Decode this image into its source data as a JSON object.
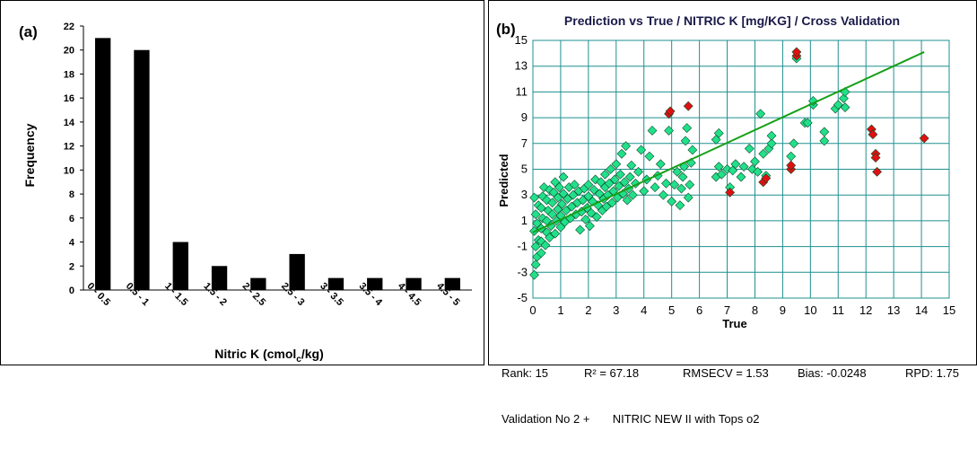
{
  "chart_data": [
    {
      "type": "bar",
      "panel_label": "(a)",
      "categories": [
        "0 - 0.5",
        "0.5 - 1",
        "1 - 1.5",
        "1.5 - 2",
        "2 - 2.5",
        "2.5 - 3",
        "3 - 3.5",
        "3.5 - 4",
        "4 - 4.5",
        "4.5 - 5"
      ],
      "values": [
        21,
        20,
        4,
        2,
        1,
        3,
        1,
        1,
        1,
        1
      ],
      "xlabel": "Nitric K (cmolc/kg)",
      "xlabel_main": "Nitric K (cmol",
      "xlabel_sub": "c",
      "xlabel_tail": "/kg)",
      "ylabel": "Frequency",
      "ylim": [
        0,
        22
      ],
      "yticks": [
        0,
        2,
        4,
        6,
        8,
        10,
        12,
        14,
        16,
        18,
        20,
        22
      ],
      "grid": false,
      "bar_color": "#000000"
    },
    {
      "type": "scatter",
      "panel_label": "(b)",
      "title": "Prediction vs True  /  NITRIC K [mg/KG]  /  Cross Validation",
      "xlabel": "True",
      "ylabel": "Predicted",
      "xlim": [
        0,
        15
      ],
      "ylim": [
        -5,
        15
      ],
      "xticks": [
        0,
        1,
        2,
        3,
        4,
        5,
        6,
        7,
        8,
        9,
        10,
        11,
        12,
        13,
        14,
        15
      ],
      "yticks": [
        -5,
        -3,
        -1,
        1,
        3,
        5,
        7,
        9,
        11,
        13,
        15
      ],
      "grid": true,
      "colors": {
        "normal": "#22e08a",
        "outlier": "#e01010",
        "grid": "#1f8f8f",
        "regression": "#16a016"
      },
      "regression_line": {
        "x": [
          0,
          14.1
        ],
        "y": [
          0.1,
          14.1
        ]
      },
      "series": [
        {
          "role": "normal",
          "points": [
            [
              0.05,
              -3.2
            ],
            [
              0.1,
              -2.4
            ],
            [
              0.15,
              -1.8
            ],
            [
              0.1,
              -1.0
            ],
            [
              0.2,
              -0.5
            ],
            [
              0.05,
              0.2
            ],
            [
              0.15,
              0.8
            ],
            [
              0.1,
              1.5
            ],
            [
              0.2,
              2.2
            ],
            [
              0.05,
              2.8
            ],
            [
              0.3,
              -1.5
            ],
            [
              0.3,
              -0.6
            ],
            [
              0.3,
              0.4
            ],
            [
              0.35,
              1.2
            ],
            [
              0.3,
              2.0
            ],
            [
              0.35,
              2.9
            ],
            [
              0.4,
              3.6
            ],
            [
              0.45,
              -0.9
            ],
            [
              0.5,
              0.1
            ],
            [
              0.5,
              1.0
            ],
            [
              0.55,
              1.8
            ],
            [
              0.5,
              2.6
            ],
            [
              0.6,
              3.4
            ],
            [
              0.6,
              -0.3
            ],
            [
              0.65,
              0.6
            ],
            [
              0.7,
              1.5
            ],
            [
              0.7,
              2.4
            ],
            [
              0.75,
              3.2
            ],
            [
              0.8,
              4.0
            ],
            [
              0.8,
              0.0
            ],
            [
              0.85,
              1.0
            ],
            [
              0.9,
              1.9
            ],
            [
              0.9,
              2.8
            ],
            [
              0.95,
              3.6
            ],
            [
              1.0,
              0.5
            ],
            [
              1.0,
              1.4
            ],
            [
              1.05,
              2.3
            ],
            [
              1.1,
              3.1
            ],
            [
              1.1,
              4.4
            ],
            [
              1.15,
              0.9
            ],
            [
              1.2,
              1.8
            ],
            [
              1.25,
              2.7
            ],
            [
              1.3,
              3.6
            ],
            [
              1.35,
              1.2
            ],
            [
              1.4,
              2.1
            ],
            [
              1.45,
              3.0
            ],
            [
              1.5,
              3.8
            ],
            [
              1.55,
              1.5
            ],
            [
              1.6,
              2.4
            ],
            [
              1.65,
              3.3
            ],
            [
              1.7,
              0.3
            ],
            [
              1.75,
              1.7
            ],
            [
              1.8,
              2.6
            ],
            [
              1.85,
              3.5
            ],
            [
              1.9,
              1.1
            ],
            [
              1.95,
              2.0
            ],
            [
              2.0,
              2.9
            ],
            [
              2.0,
              3.8
            ],
            [
              2.05,
              0.6
            ],
            [
              2.1,
              1.6
            ],
            [
              2.15,
              2.5
            ],
            [
              2.2,
              3.4
            ],
            [
              2.25,
              4.2
            ],
            [
              2.3,
              1.3
            ],
            [
              2.35,
              2.2
            ],
            [
              2.4,
              3.1
            ],
            [
              2.45,
              4.0
            ],
            [
              2.5,
              1.8
            ],
            [
              2.55,
              2.7
            ],
            [
              2.6,
              3.6
            ],
            [
              2.6,
              4.6
            ],
            [
              2.65,
              2.1
            ],
            [
              2.7,
              3.0
            ],
            [
              2.75,
              3.9
            ],
            [
              2.8,
              5.0
            ],
            [
              2.85,
              2.4
            ],
            [
              2.9,
              3.3
            ],
            [
              2.95,
              4.2
            ],
            [
              3.0,
              5.4
            ],
            [
              3.05,
              2.8
            ],
            [
              3.1,
              3.7
            ],
            [
              3.15,
              4.6
            ],
            [
              3.2,
              6.2
            ],
            [
              3.25,
              3.1
            ],
            [
              3.3,
              4.0
            ],
            [
              3.35,
              6.8
            ],
            [
              3.4,
              2.6
            ],
            [
              3.45,
              3.5
            ],
            [
              3.5,
              4.4
            ],
            [
              3.55,
              5.3
            ],
            [
              3.6,
              3.0
            ],
            [
              3.7,
              3.9
            ],
            [
              3.8,
              4.8
            ],
            [
              3.9,
              6.5
            ],
            [
              4.0,
              3.3
            ],
            [
              4.1,
              4.2
            ],
            [
              4.2,
              6.0
            ],
            [
              4.3,
              8.0
            ],
            [
              4.4,
              3.6
            ],
            [
              4.5,
              4.5
            ],
            [
              4.6,
              5.4
            ],
            [
              4.7,
              3.0
            ],
            [
              4.8,
              3.9
            ],
            [
              4.9,
              8.0
            ],
            [
              5.0,
              2.5
            ],
            [
              5.1,
              3.8
            ],
            [
              5.2,
              4.8
            ],
            [
              5.3,
              2.2
            ],
            [
              5.35,
              3.5
            ],
            [
              5.4,
              4.4
            ],
            [
              5.45,
              5.2
            ],
            [
              5.5,
              7.2
            ],
            [
              5.55,
              8.2
            ],
            [
              5.6,
              2.8
            ],
            [
              5.65,
              3.8
            ],
            [
              5.7,
              5.5
            ],
            [
              5.75,
              6.5
            ],
            [
              6.6,
              4.4
            ],
            [
              6.7,
              5.2
            ],
            [
              6.6,
              7.3
            ],
            [
              6.7,
              7.8
            ],
            [
              6.8,
              4.6
            ],
            [
              7.0,
              5.0
            ],
            [
              7.1,
              3.6
            ],
            [
              7.2,
              4.9
            ],
            [
              7.3,
              5.4
            ],
            [
              7.5,
              4.4
            ],
            [
              7.6,
              5.2
            ],
            [
              7.8,
              6.6
            ],
            [
              7.9,
              5.0
            ],
            [
              8.0,
              5.6
            ],
            [
              8.1,
              4.8
            ],
            [
              8.2,
              9.3
            ],
            [
              8.3,
              6.2
            ],
            [
              8.4,
              4.5
            ],
            [
              8.5,
              6.6
            ],
            [
              8.6,
              7.0
            ],
            [
              8.6,
              7.6
            ],
            [
              9.3,
              6.0
            ],
            [
              9.4,
              7.0
            ],
            [
              9.5,
              13.6
            ],
            [
              9.8,
              8.6
            ],
            [
              9.9,
              8.6
            ],
            [
              10.1,
              10.0
            ],
            [
              10.1,
              10.3
            ],
            [
              10.5,
              7.2
            ],
            [
              10.5,
              7.9
            ],
            [
              10.9,
              9.7
            ],
            [
              11.0,
              10.0
            ],
            [
              11.2,
              10.5
            ],
            [
              11.25,
              11.0
            ],
            [
              11.25,
              9.8
            ]
          ]
        },
        {
          "role": "outlier",
          "points": [
            [
              4.9,
              9.3
            ],
            [
              4.95,
              9.5
            ],
            [
              5.6,
              9.9
            ],
            [
              7.1,
              3.2
            ],
            [
              8.3,
              4.0
            ],
            [
              8.4,
              4.3
            ],
            [
              9.3,
              5.0
            ],
            [
              9.3,
              5.3
            ],
            [
              9.5,
              13.8
            ],
            [
              9.5,
              14.1
            ],
            [
              12.2,
              8.1
            ],
            [
              12.25,
              7.7
            ],
            [
              12.35,
              6.2
            ],
            [
              12.35,
              5.9
            ],
            [
              12.4,
              4.8
            ],
            [
              14.1,
              7.4
            ]
          ]
        }
      ]
    }
  ],
  "stats_line": [
    "Rank: 15",
    "R² = 67.18",
    "RMSECV = 1.53",
    "Bias: -0.0248",
    "RPD: 1.75"
  ],
  "stats_line2": "Validation No 2 +       NITRIC NEW II with Tops o2"
}
